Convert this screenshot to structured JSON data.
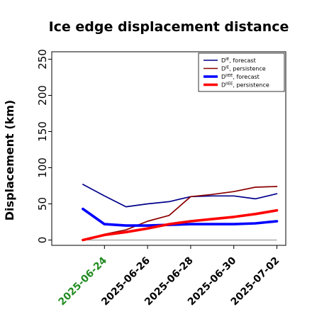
{
  "chart_data": {
    "type": "line",
    "title": "Ice edge displacement distance",
    "ylabel": "Displacement (km)",
    "xlabel": "",
    "ylim": [
      0,
      260
    ],
    "xlim": [
      "2025-06-22",
      "2025-07-02"
    ],
    "yticks": [
      0,
      50,
      100,
      150,
      200,
      250
    ],
    "xticks": [
      "2025-06-24",
      "2025-06-26",
      "2025-06-28",
      "2025-06-30",
      "2025-07-02"
    ],
    "highlight_tick_color": "#228B22",
    "grid": false,
    "legend_position": "top-right",
    "x": [
      "2025-06-23",
      "2025-06-24",
      "2025-06-25",
      "2025-06-26",
      "2025-06-27",
      "2025-06-28",
      "2025-06-29",
      "2025-06-30",
      "2025-07-01",
      "2025-07-02"
    ],
    "series": [
      {
        "name": "D^IE, forecast",
        "label_main": "D",
        "label_sup": "IE",
        "label_rest": ", forecast",
        "color": "#00008B",
        "width": "thin",
        "values": [
          77,
          61,
          46,
          50,
          53,
          60,
          61,
          61,
          57,
          64
        ]
      },
      {
        "name": "D^IE, persistence",
        "label_main": "D",
        "label_sup": "IE",
        "label_rest": ", persistence",
        "color": "#8B0000",
        "width": "thin",
        "values": [
          0,
          8,
          14,
          26,
          34,
          60,
          63,
          67,
          73,
          74
        ]
      },
      {
        "name": "D^IIEE, forecast",
        "label_main": "D",
        "label_sup": "IIEE",
        "label_rest": ", forecast",
        "color": "#0000FF",
        "width": "thick",
        "values": [
          43,
          22,
          20,
          20,
          21,
          22,
          22,
          22,
          23,
          26
        ]
      },
      {
        "name": "D^IIEE, persistence",
        "label_main": "D",
        "label_sup": "IIEE",
        "label_rest": ", persistence",
        "color": "#FF0000",
        "width": "thick",
        "values": [
          0,
          7,
          11,
          16,
          22,
          26,
          29,
          32,
          36,
          41
        ]
      }
    ]
  }
}
